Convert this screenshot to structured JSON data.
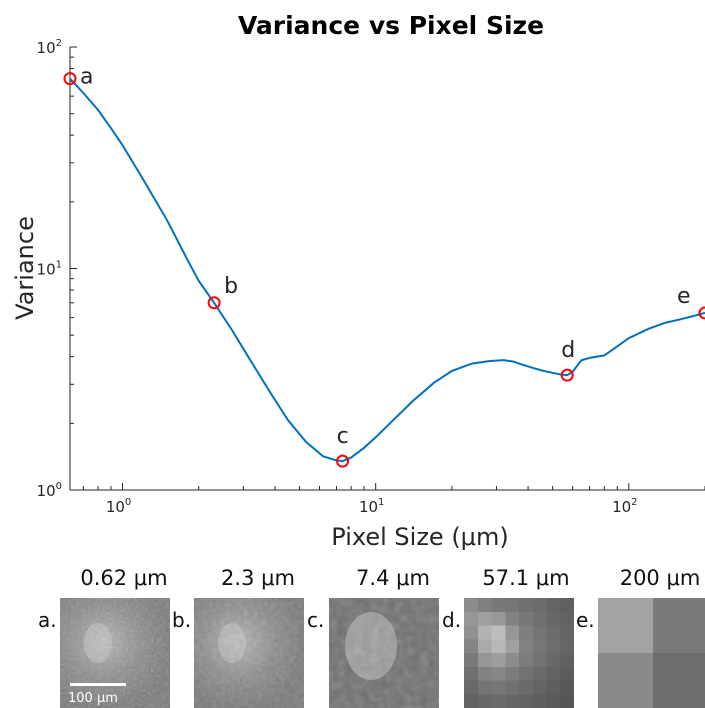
{
  "chart_data": {
    "type": "line",
    "title": "Variance vs Pixel Size",
    "xlabel": "Pixel Size (μm)",
    "ylabel": "Variance",
    "xscale": "log",
    "yscale": "log",
    "xlim": [
      0.62,
      200
    ],
    "ylim": [
      1,
      100
    ],
    "grid": false,
    "line_color": "#0072BD",
    "marker_color": "#ff0000",
    "x_ticks": [
      {
        "value": 1,
        "base": "10",
        "exp": "0"
      },
      {
        "value": 10,
        "base": "10",
        "exp": "1"
      },
      {
        "value": 100,
        "base": "10",
        "exp": "2"
      }
    ],
    "y_ticks": [
      {
        "value": 1,
        "base": "10",
        "exp": "0"
      },
      {
        "value": 10,
        "base": "10",
        "exp": "1"
      },
      {
        "value": 100,
        "base": "10",
        "exp": "2"
      }
    ],
    "series": [
      {
        "x": [
          0.62,
          0.7,
          0.8,
          0.9,
          1.0,
          1.2,
          1.5,
          1.8,
          2.0,
          2.3,
          2.7,
          3.2,
          3.8,
          4.5,
          5.3,
          6.2,
          7.0,
          7.4,
          8.0,
          9.0,
          10,
          12,
          14,
          17,
          20,
          24,
          28,
          32,
          35,
          38,
          42,
          46,
          50,
          54,
          57.1,
          60,
          65,
          70,
          80,
          90,
          100,
          120,
          140,
          160,
          180,
          200
        ],
        "y": [
          72,
          62,
          52,
          43,
          36,
          25.5,
          16.5,
          11,
          8.8,
          7.0,
          5.3,
          3.85,
          2.8,
          2.07,
          1.65,
          1.42,
          1.36,
          1.35,
          1.4,
          1.55,
          1.73,
          2.12,
          2.52,
          3.05,
          3.45,
          3.72,
          3.82,
          3.86,
          3.8,
          3.68,
          3.55,
          3.45,
          3.38,
          3.32,
          3.3,
          3.42,
          3.85,
          3.95,
          4.05,
          4.45,
          4.85,
          5.35,
          5.7,
          5.9,
          6.1,
          6.3
        ]
      }
    ],
    "points": [
      {
        "label": "a",
        "x": 0.62,
        "y": 72
      },
      {
        "label": "b",
        "x": 2.3,
        "y": 7.0
      },
      {
        "label": "c",
        "x": 7.4,
        "y": 1.35
      },
      {
        "label": "d",
        "x": 57.1,
        "y": 3.3
      },
      {
        "label": "e",
        "x": 200,
        "y": 6.3
      }
    ]
  },
  "panels": [
    {
      "letter": "a.",
      "pixel_size": "0.62 μm",
      "scale_bar": "100 μm",
      "shade": "#8a8a8a"
    },
    {
      "letter": "b.",
      "pixel_size": "2.3 μm",
      "shade": "#8c8c8c"
    },
    {
      "letter": "c.",
      "pixel_size": "7.4 μm",
      "shade": "#8e8e8e"
    },
    {
      "letter": "d.",
      "pixel_size": "57.1 μm",
      "shade": "#8f8f8f"
    },
    {
      "letter": "e.",
      "pixel_size": "200 μm",
      "shade": "#7e7e7e"
    }
  ]
}
